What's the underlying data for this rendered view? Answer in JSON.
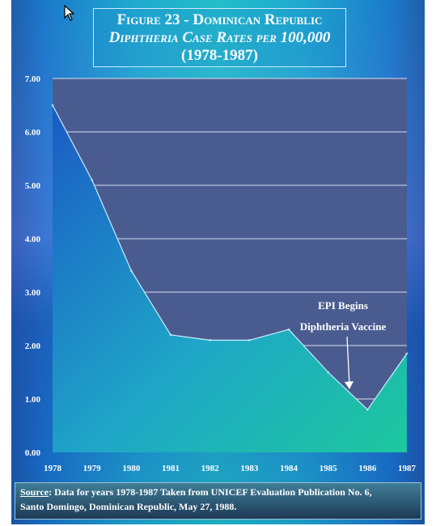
{
  "title": {
    "line1": "Figure 23 - Dominican Republic",
    "line2": "Diphtheria Case Rates per 100,000",
    "line3": "(1978-1987)"
  },
  "chart_data": {
    "type": "area",
    "x": [
      1978,
      1979,
      1980,
      1981,
      1982,
      1983,
      1984,
      1985,
      1986,
      1987
    ],
    "series": [
      {
        "values": [
          6.5,
          5.1,
          3.4,
          2.2,
          2.1,
          2.1,
          2.3,
          1.5,
          0.8,
          1.85
        ]
      }
    ],
    "ylim": [
      0,
      7
    ],
    "y_ticks": [
      "0.00",
      "1.00",
      "2.00",
      "3.00",
      "4.00",
      "5.00",
      "6.00",
      "7.00"
    ],
    "x_ticks": [
      "1978",
      "1979",
      "1980",
      "1981",
      "1982",
      "1983",
      "1984",
      "1985",
      "1986",
      "1987"
    ],
    "grid": true,
    "annotation": {
      "line1": "EPI Begins",
      "line2": "Diphtheria Vaccine",
      "points_to_x": 1985.5
    },
    "colors": {
      "plot_background": "#4a5c8f",
      "area_left": "#1a5bc4",
      "area_right": "#1dc89e",
      "grid": "#d8dff0"
    }
  },
  "source": {
    "label": "Source",
    "text": ": Data for years 1978-1987 Taken from UNICEF Evaluation Publication No. 6,",
    "text2": "Santo Domingo, Dominican Republic, May 27, 1988."
  },
  "cursor": "arrow-cursor-icon"
}
